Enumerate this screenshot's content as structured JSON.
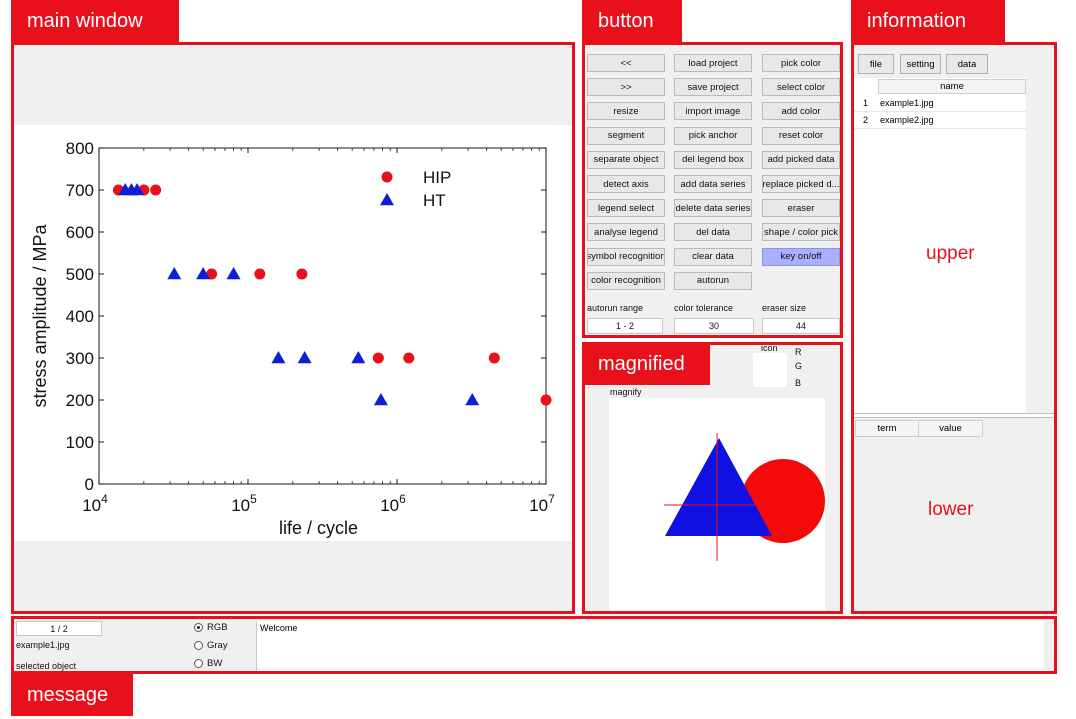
{
  "labels": {
    "main_window": "main window",
    "button": "button",
    "information": "information",
    "magnified": "magnified",
    "message": "message",
    "upper": "upper",
    "lower": "lower"
  },
  "buttons": {
    "col1": [
      "<<",
      ">>",
      "resize",
      "segment",
      "separate object",
      "detect axis",
      "legend select",
      "analyse legend",
      "symbol recognition",
      "color recognition"
    ],
    "col2": [
      "load project",
      "save project",
      "import image",
      "pick anchor",
      "del legend box",
      "add data series",
      "delete data series",
      "del data",
      "clear data",
      "autorun"
    ],
    "col3": [
      "pick color",
      "select color",
      "add color",
      "reset color",
      "add picked data",
      "replace picked d...",
      "eraser",
      "shape / color pick",
      "key on/off"
    ]
  },
  "settings": {
    "autorun_range_label": "autorun range",
    "autorun_range_value": "1 - 2",
    "color_tolerance_label": "color tolerance",
    "color_tolerance_value": "30",
    "eraser_size_label": "eraser size",
    "eraser_size_value": "44"
  },
  "magnified_panel": {
    "icon_label": "icon",
    "r_label": "R",
    "g_label": "G",
    "b_label": "B",
    "magnify_label": "magnify"
  },
  "info": {
    "tabs": [
      "file",
      "setting",
      "data"
    ],
    "file_header": "name",
    "files": [
      {
        "index": "1",
        "name": "example1.jpg"
      },
      {
        "index": "2",
        "name": "example2.jpg"
      }
    ],
    "lower_headers": [
      "term",
      "value"
    ]
  },
  "status": {
    "page": "1 / 2",
    "filename": "example1.jpg",
    "selected": "selected object",
    "radios": [
      {
        "label": "RGB",
        "checked": true
      },
      {
        "label": "Gray",
        "checked": false
      },
      {
        "label": "BW",
        "checked": false
      }
    ],
    "message": "Welcome"
  },
  "chart_data": {
    "type": "scatter",
    "title": "",
    "xlabel": "life / cycle",
    "ylabel": "stress amplitude / MPa",
    "xscale": "log",
    "xlim": [
      10000,
      10000000
    ],
    "ylim": [
      0,
      800
    ],
    "xticks": [
      "10^4",
      "10^5",
      "10^6",
      "10^7"
    ],
    "yticks": [
      0,
      100,
      200,
      300,
      400,
      500,
      600,
      700,
      800
    ],
    "grid": false,
    "legend": "top-right",
    "series": [
      {
        "name": "HIP",
        "marker": "circle",
        "color": "#e8101a",
        "points": [
          [
            13500,
            700
          ],
          [
            20000,
            700
          ],
          [
            24000,
            700
          ],
          [
            57000,
            500
          ],
          [
            120000,
            500
          ],
          [
            230000,
            500
          ],
          [
            750000,
            300
          ],
          [
            1200000,
            300
          ],
          [
            4500000,
            300
          ],
          [
            10000000,
            200
          ]
        ]
      },
      {
        "name": "HT",
        "marker": "triangle",
        "color": "#0a1fd6",
        "points": [
          [
            15000,
            700
          ],
          [
            16500,
            700
          ],
          [
            18000,
            700
          ],
          [
            32000,
            500
          ],
          [
            50000,
            500
          ],
          [
            80000,
            500
          ],
          [
            160000,
            300
          ],
          [
            240000,
            300
          ],
          [
            550000,
            300
          ],
          [
            780000,
            200
          ],
          [
            3200000,
            200
          ]
        ]
      }
    ]
  }
}
